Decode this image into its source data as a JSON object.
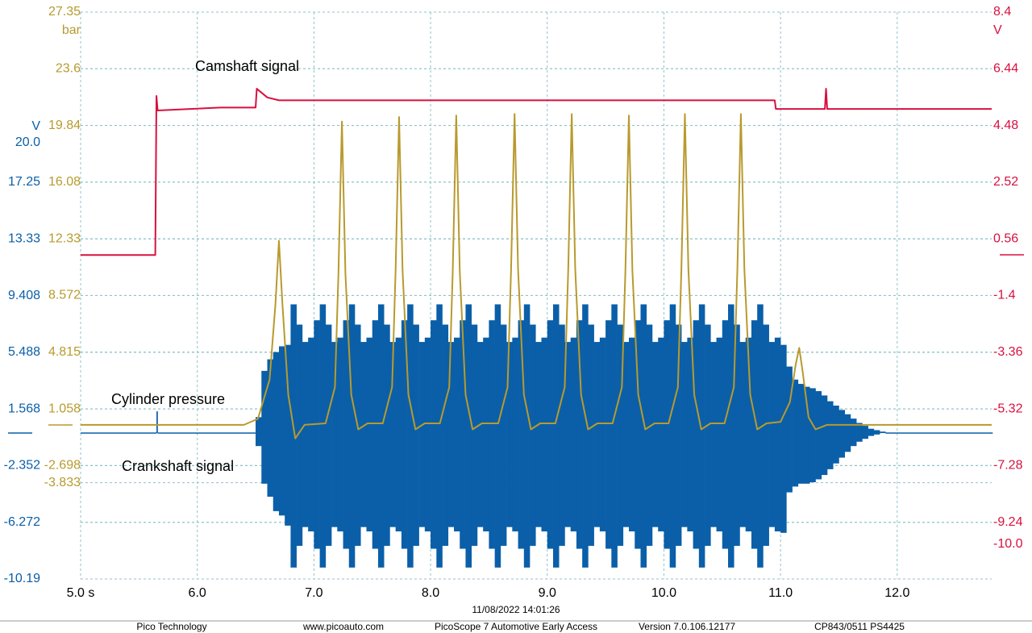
{
  "chart_data": {
    "type": "line",
    "xlim": [
      5.0,
      12.81
    ],
    "xticks": [
      {
        "value": 5,
        "label": "5.0 s"
      },
      {
        "value": 6,
        "label": "6.0"
      },
      {
        "value": 7,
        "label": "7.0"
      },
      {
        "value": 8,
        "label": "8.0"
      },
      {
        "value": 9,
        "label": "9.0"
      },
      {
        "value": 10,
        "label": "10.0"
      },
      {
        "value": 11,
        "label": "11.0"
      },
      {
        "value": 12,
        "label": "12.0"
      }
    ],
    "ylabel": "V",
    "ylim": [
      -10.19,
      29.01
    ],
    "yticks": [
      {
        "value": 20,
        "label": "20.0"
      },
      17.25,
      13.33,
      9.408,
      5.488,
      1.568,
      -2.352,
      -6.272,
      -10.19
    ],
    "y3label": "bar",
    "y3lim": [
      -10.213,
      27.35
    ],
    "y3ticks": [
      27.35,
      23.6,
      19.84,
      16.08,
      12.33,
      8.572,
      4.815,
      1.058,
      -2.698,
      -3.833
    ],
    "y2label": "V",
    "y2lim": [
      -11.2,
      8.4
    ],
    "y2ticks": [
      8.4,
      6.44,
      4.48,
      2.52,
      0.56,
      -1.4,
      -3.36,
      -5.32,
      -7.28,
      -9.24,
      {
        "value": -10,
        "label": "-10.0"
      }
    ],
    "grid": true,
    "series": [
      {
        "name": "Camshaft signal",
        "color": "#d8103f",
        "axis": "y2",
        "x": [
          5.0,
          5.64,
          5.65,
          5.66,
          6.2,
          6.5,
          6.51,
          6.6,
          6.7,
          7.0,
          10.95,
          10.96,
          11.38,
          11.39,
          11.4,
          12.81
        ],
        "values": [
          0.0,
          0.0,
          5.5,
          5.0,
          5.1,
          5.1,
          5.75,
          5.45,
          5.35,
          5.35,
          5.35,
          5.05,
          5.05,
          5.75,
          5.05,
          5.05
        ]
      },
      {
        "name": "Cylinder pressure",
        "color": "#b89a2e",
        "axis": "y3",
        "x": [
          5.0,
          6.4,
          6.52,
          6.62,
          6.67,
          6.7,
          6.73,
          6.78,
          6.84,
          6.92,
          7.1,
          7.18,
          7.21,
          7.24,
          7.27,
          7.32,
          7.38,
          7.46,
          7.59,
          7.67,
          7.7,
          7.73,
          7.76,
          7.81,
          7.87,
          7.95,
          8.08,
          8.16,
          8.19,
          8.22,
          8.25,
          8.3,
          8.36,
          8.44,
          8.58,
          8.66,
          8.69,
          8.72,
          8.75,
          8.8,
          8.86,
          8.94,
          9.07,
          9.15,
          9.18,
          9.21,
          9.24,
          9.29,
          9.35,
          9.43,
          9.56,
          9.64,
          9.67,
          9.7,
          9.73,
          9.78,
          9.84,
          9.92,
          10.04,
          10.12,
          10.15,
          10.18,
          10.21,
          10.26,
          10.32,
          10.4,
          10.52,
          10.6,
          10.63,
          10.66,
          10.69,
          10.74,
          10.8,
          10.88,
          11.0,
          11.08,
          11.13,
          11.16,
          11.19,
          11.24,
          11.3,
          11.4,
          12.81
        ],
        "values": [
          0.0,
          0.0,
          0.4,
          3.0,
          8.0,
          12.2,
          8.0,
          2.0,
          -0.9,
          0.0,
          0.1,
          2.5,
          10.0,
          20.1,
          10.0,
          2.0,
          -0.3,
          0.1,
          0.1,
          2.5,
          10.2,
          20.4,
          10.2,
          2.0,
          -0.3,
          0.1,
          0.1,
          2.5,
          10.2,
          20.5,
          10.2,
          2.0,
          -0.3,
          0.1,
          0.1,
          2.5,
          10.3,
          20.6,
          10.3,
          2.0,
          -0.3,
          0.1,
          0.1,
          2.5,
          10.3,
          20.6,
          10.3,
          2.0,
          -0.3,
          0.1,
          0.1,
          2.5,
          10.2,
          20.5,
          10.2,
          2.0,
          -0.3,
          0.1,
          0.1,
          2.5,
          10.3,
          20.6,
          10.3,
          2.0,
          -0.3,
          0.1,
          0.1,
          2.5,
          10.3,
          20.6,
          10.3,
          2.0,
          -0.3,
          0.1,
          0.2,
          1.5,
          4.0,
          5.1,
          3.5,
          0.5,
          -0.3,
          0.0,
          0.0
        ]
      },
      {
        "name": "Crankshaft signal",
        "color": "#0a5fa8",
        "axis": "y",
        "x": [
          5.0,
          5.64,
          5.65,
          5.66,
          6.45,
          6.5,
          6.55,
          6.6,
          6.65,
          6.7,
          6.75,
          6.8,
          6.85,
          6.9,
          6.95,
          7.0,
          7.05,
          7.1,
          7.15,
          7.2,
          7.25,
          7.3,
          7.35,
          7.4,
          7.45,
          7.5,
          7.55,
          7.6,
          7.65,
          7.7,
          7.75,
          7.8,
          7.85,
          7.9,
          7.95,
          8.0,
          8.05,
          8.1,
          8.15,
          8.2,
          8.25,
          8.3,
          8.35,
          8.4,
          8.45,
          8.5,
          8.55,
          8.6,
          8.65,
          8.7,
          8.75,
          8.8,
          8.85,
          8.9,
          8.95,
          9.0,
          9.05,
          9.1,
          9.15,
          9.2,
          9.25,
          9.3,
          9.35,
          9.4,
          9.45,
          9.5,
          9.55,
          9.6,
          9.65,
          9.7,
          9.75,
          9.8,
          9.85,
          9.9,
          9.95,
          10.0,
          10.05,
          10.1,
          10.15,
          10.2,
          10.25,
          10.3,
          10.35,
          10.4,
          10.45,
          10.5,
          10.55,
          10.6,
          10.65,
          10.7,
          10.75,
          10.8,
          10.85,
          10.9,
          10.95,
          11.0,
          11.05,
          11.1,
          11.15,
          11.2,
          11.25,
          11.3,
          11.35,
          11.4,
          11.45,
          11.5,
          11.55,
          11.6,
          11.65,
          11.7,
          11.75,
          11.8,
          11.85,
          11.9,
          12.81
        ],
        "values": [
          -0.1,
          -0.1,
          1.4,
          -0.1,
          -0.1,
          1.0,
          4.2,
          5.0,
          5.5,
          5.9,
          6.0,
          8.8,
          7.4,
          6.2,
          6.5,
          7.7,
          8.8,
          7.4,
          6.2,
          6.5,
          7.7,
          8.8,
          7.4,
          6.2,
          6.5,
          7.7,
          8.8,
          7.4,
          6.2,
          6.5,
          7.7,
          8.8,
          7.4,
          6.2,
          6.5,
          7.7,
          8.8,
          7.4,
          6.2,
          6.5,
          7.7,
          8.8,
          7.4,
          6.2,
          6.5,
          7.7,
          8.8,
          7.4,
          6.2,
          6.5,
          7.7,
          8.8,
          7.4,
          6.2,
          6.5,
          7.7,
          8.8,
          7.4,
          6.2,
          6.5,
          7.7,
          8.8,
          7.4,
          6.2,
          6.5,
          7.7,
          8.8,
          7.4,
          6.2,
          6.5,
          7.7,
          8.8,
          7.4,
          6.2,
          6.5,
          7.7,
          8.8,
          7.4,
          6.2,
          6.5,
          7.7,
          8.8,
          7.4,
          6.2,
          6.5,
          7.7,
          8.8,
          7.4,
          6.2,
          6.5,
          7.7,
          8.8,
          7.4,
          6.2,
          6.5,
          6.0,
          4.5,
          3.6,
          3.3,
          3.1,
          3.0,
          2.8,
          2.5,
          2.1,
          1.8,
          1.5,
          1.2,
          0.9,
          0.6,
          0.4,
          0.2,
          0.1,
          0.0,
          -0.1,
          -0.1
        ],
        "low": [
          -0.1,
          -0.1,
          -0.1,
          -0.1,
          -0.1,
          -1.0,
          -3.6,
          -4.5,
          -5.5,
          -5.8,
          -6.5,
          -9.4,
          -7.9,
          -6.6,
          -6.9,
          -8.1,
          -9.4,
          -7.9,
          -6.6,
          -6.9,
          -8.1,
          -9.4,
          -7.9,
          -6.6,
          -6.9,
          -8.1,
          -9.4,
          -7.9,
          -6.6,
          -6.9,
          -8.1,
          -9.4,
          -7.9,
          -6.6,
          -6.9,
          -8.1,
          -9.4,
          -7.9,
          -6.6,
          -6.9,
          -8.1,
          -9.4,
          -7.9,
          -6.6,
          -6.9,
          -8.1,
          -9.4,
          -7.9,
          -6.6,
          -6.9,
          -8.1,
          -9.4,
          -7.9,
          -6.6,
          -6.9,
          -8.1,
          -9.4,
          -7.9,
          -6.6,
          -6.9,
          -8.1,
          -9.4,
          -7.9,
          -6.6,
          -6.9,
          -8.1,
          -9.4,
          -7.9,
          -6.6,
          -6.9,
          -8.1,
          -9.4,
          -7.9,
          -6.6,
          -6.9,
          -8.1,
          -9.4,
          -7.9,
          -6.6,
          -6.9,
          -8.1,
          -9.4,
          -7.9,
          -6.6,
          -6.9,
          -8.1,
          -9.4,
          -7.9,
          -6.6,
          -6.9,
          -8.1,
          -9.4,
          -7.9,
          -6.6,
          -6.9,
          -7.0,
          -4.2,
          -3.8,
          -3.6,
          -3.6,
          -3.5,
          -3.3,
          -3.0,
          -2.6,
          -2.2,
          -1.8,
          -1.4,
          -1.0,
          -0.7,
          -0.5,
          -0.3,
          -0.2,
          -0.1,
          -0.1,
          -0.1
        ]
      }
    ]
  },
  "footer": {
    "timestamp": "11/08/2022 14:01:26",
    "items": [
      "Pico Technology",
      "www.picoauto.com",
      "PicoScope 7 Automotive Early Access",
      "Version 7.0.106.12177",
      "CP843/0511 PS4425"
    ]
  }
}
